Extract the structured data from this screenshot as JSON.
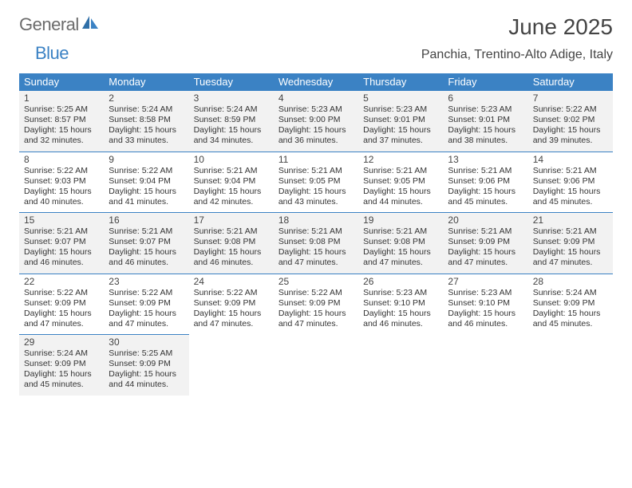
{
  "logo": {
    "part1": "General",
    "part2": "Blue"
  },
  "title": "June 2025",
  "location": "Panchia, Trentino-Alto Adige, Italy",
  "colors": {
    "header_bg": "#3b82c4",
    "header_fg": "#ffffff",
    "shaded_bg": "#f2f2f2",
    "cell_bg": "#ffffff",
    "border": "#3b82c4",
    "text": "#333333",
    "logo_gray": "#6b6b6b",
    "logo_blue": "#3b82c4"
  },
  "weekdays": [
    "Sunday",
    "Monday",
    "Tuesday",
    "Wednesday",
    "Thursday",
    "Friday",
    "Saturday"
  ],
  "labels": {
    "sunrise": "Sunrise:",
    "sunset": "Sunset:",
    "daylight": "Daylight:"
  },
  "days": [
    {
      "n": 1,
      "sr": "5:25 AM",
      "ss": "8:57 PM",
      "dl": "15 hours and 32 minutes."
    },
    {
      "n": 2,
      "sr": "5:24 AM",
      "ss": "8:58 PM",
      "dl": "15 hours and 33 minutes."
    },
    {
      "n": 3,
      "sr": "5:24 AM",
      "ss": "8:59 PM",
      "dl": "15 hours and 34 minutes."
    },
    {
      "n": 4,
      "sr": "5:23 AM",
      "ss": "9:00 PM",
      "dl": "15 hours and 36 minutes."
    },
    {
      "n": 5,
      "sr": "5:23 AM",
      "ss": "9:01 PM",
      "dl": "15 hours and 37 minutes."
    },
    {
      "n": 6,
      "sr": "5:23 AM",
      "ss": "9:01 PM",
      "dl": "15 hours and 38 minutes."
    },
    {
      "n": 7,
      "sr": "5:22 AM",
      "ss": "9:02 PM",
      "dl": "15 hours and 39 minutes."
    },
    {
      "n": 8,
      "sr": "5:22 AM",
      "ss": "9:03 PM",
      "dl": "15 hours and 40 minutes."
    },
    {
      "n": 9,
      "sr": "5:22 AM",
      "ss": "9:04 PM",
      "dl": "15 hours and 41 minutes."
    },
    {
      "n": 10,
      "sr": "5:21 AM",
      "ss": "9:04 PM",
      "dl": "15 hours and 42 minutes."
    },
    {
      "n": 11,
      "sr": "5:21 AM",
      "ss": "9:05 PM",
      "dl": "15 hours and 43 minutes."
    },
    {
      "n": 12,
      "sr": "5:21 AM",
      "ss": "9:05 PM",
      "dl": "15 hours and 44 minutes."
    },
    {
      "n": 13,
      "sr": "5:21 AM",
      "ss": "9:06 PM",
      "dl": "15 hours and 45 minutes."
    },
    {
      "n": 14,
      "sr": "5:21 AM",
      "ss": "9:06 PM",
      "dl": "15 hours and 45 minutes."
    },
    {
      "n": 15,
      "sr": "5:21 AM",
      "ss": "9:07 PM",
      "dl": "15 hours and 46 minutes."
    },
    {
      "n": 16,
      "sr": "5:21 AM",
      "ss": "9:07 PM",
      "dl": "15 hours and 46 minutes."
    },
    {
      "n": 17,
      "sr": "5:21 AM",
      "ss": "9:08 PM",
      "dl": "15 hours and 46 minutes."
    },
    {
      "n": 18,
      "sr": "5:21 AM",
      "ss": "9:08 PM",
      "dl": "15 hours and 47 minutes."
    },
    {
      "n": 19,
      "sr": "5:21 AM",
      "ss": "9:08 PM",
      "dl": "15 hours and 47 minutes."
    },
    {
      "n": 20,
      "sr": "5:21 AM",
      "ss": "9:09 PM",
      "dl": "15 hours and 47 minutes."
    },
    {
      "n": 21,
      "sr": "5:21 AM",
      "ss": "9:09 PM",
      "dl": "15 hours and 47 minutes."
    },
    {
      "n": 22,
      "sr": "5:22 AM",
      "ss": "9:09 PM",
      "dl": "15 hours and 47 minutes."
    },
    {
      "n": 23,
      "sr": "5:22 AM",
      "ss": "9:09 PM",
      "dl": "15 hours and 47 minutes."
    },
    {
      "n": 24,
      "sr": "5:22 AM",
      "ss": "9:09 PM",
      "dl": "15 hours and 47 minutes."
    },
    {
      "n": 25,
      "sr": "5:22 AM",
      "ss": "9:09 PM",
      "dl": "15 hours and 47 minutes."
    },
    {
      "n": 26,
      "sr": "5:23 AM",
      "ss": "9:10 PM",
      "dl": "15 hours and 46 minutes."
    },
    {
      "n": 27,
      "sr": "5:23 AM",
      "ss": "9:10 PM",
      "dl": "15 hours and 46 minutes."
    },
    {
      "n": 28,
      "sr": "5:24 AM",
      "ss": "9:09 PM",
      "dl": "15 hours and 45 minutes."
    },
    {
      "n": 29,
      "sr": "5:24 AM",
      "ss": "9:09 PM",
      "dl": "15 hours and 45 minutes."
    },
    {
      "n": 30,
      "sr": "5:25 AM",
      "ss": "9:09 PM",
      "dl": "15 hours and 44 minutes."
    }
  ]
}
